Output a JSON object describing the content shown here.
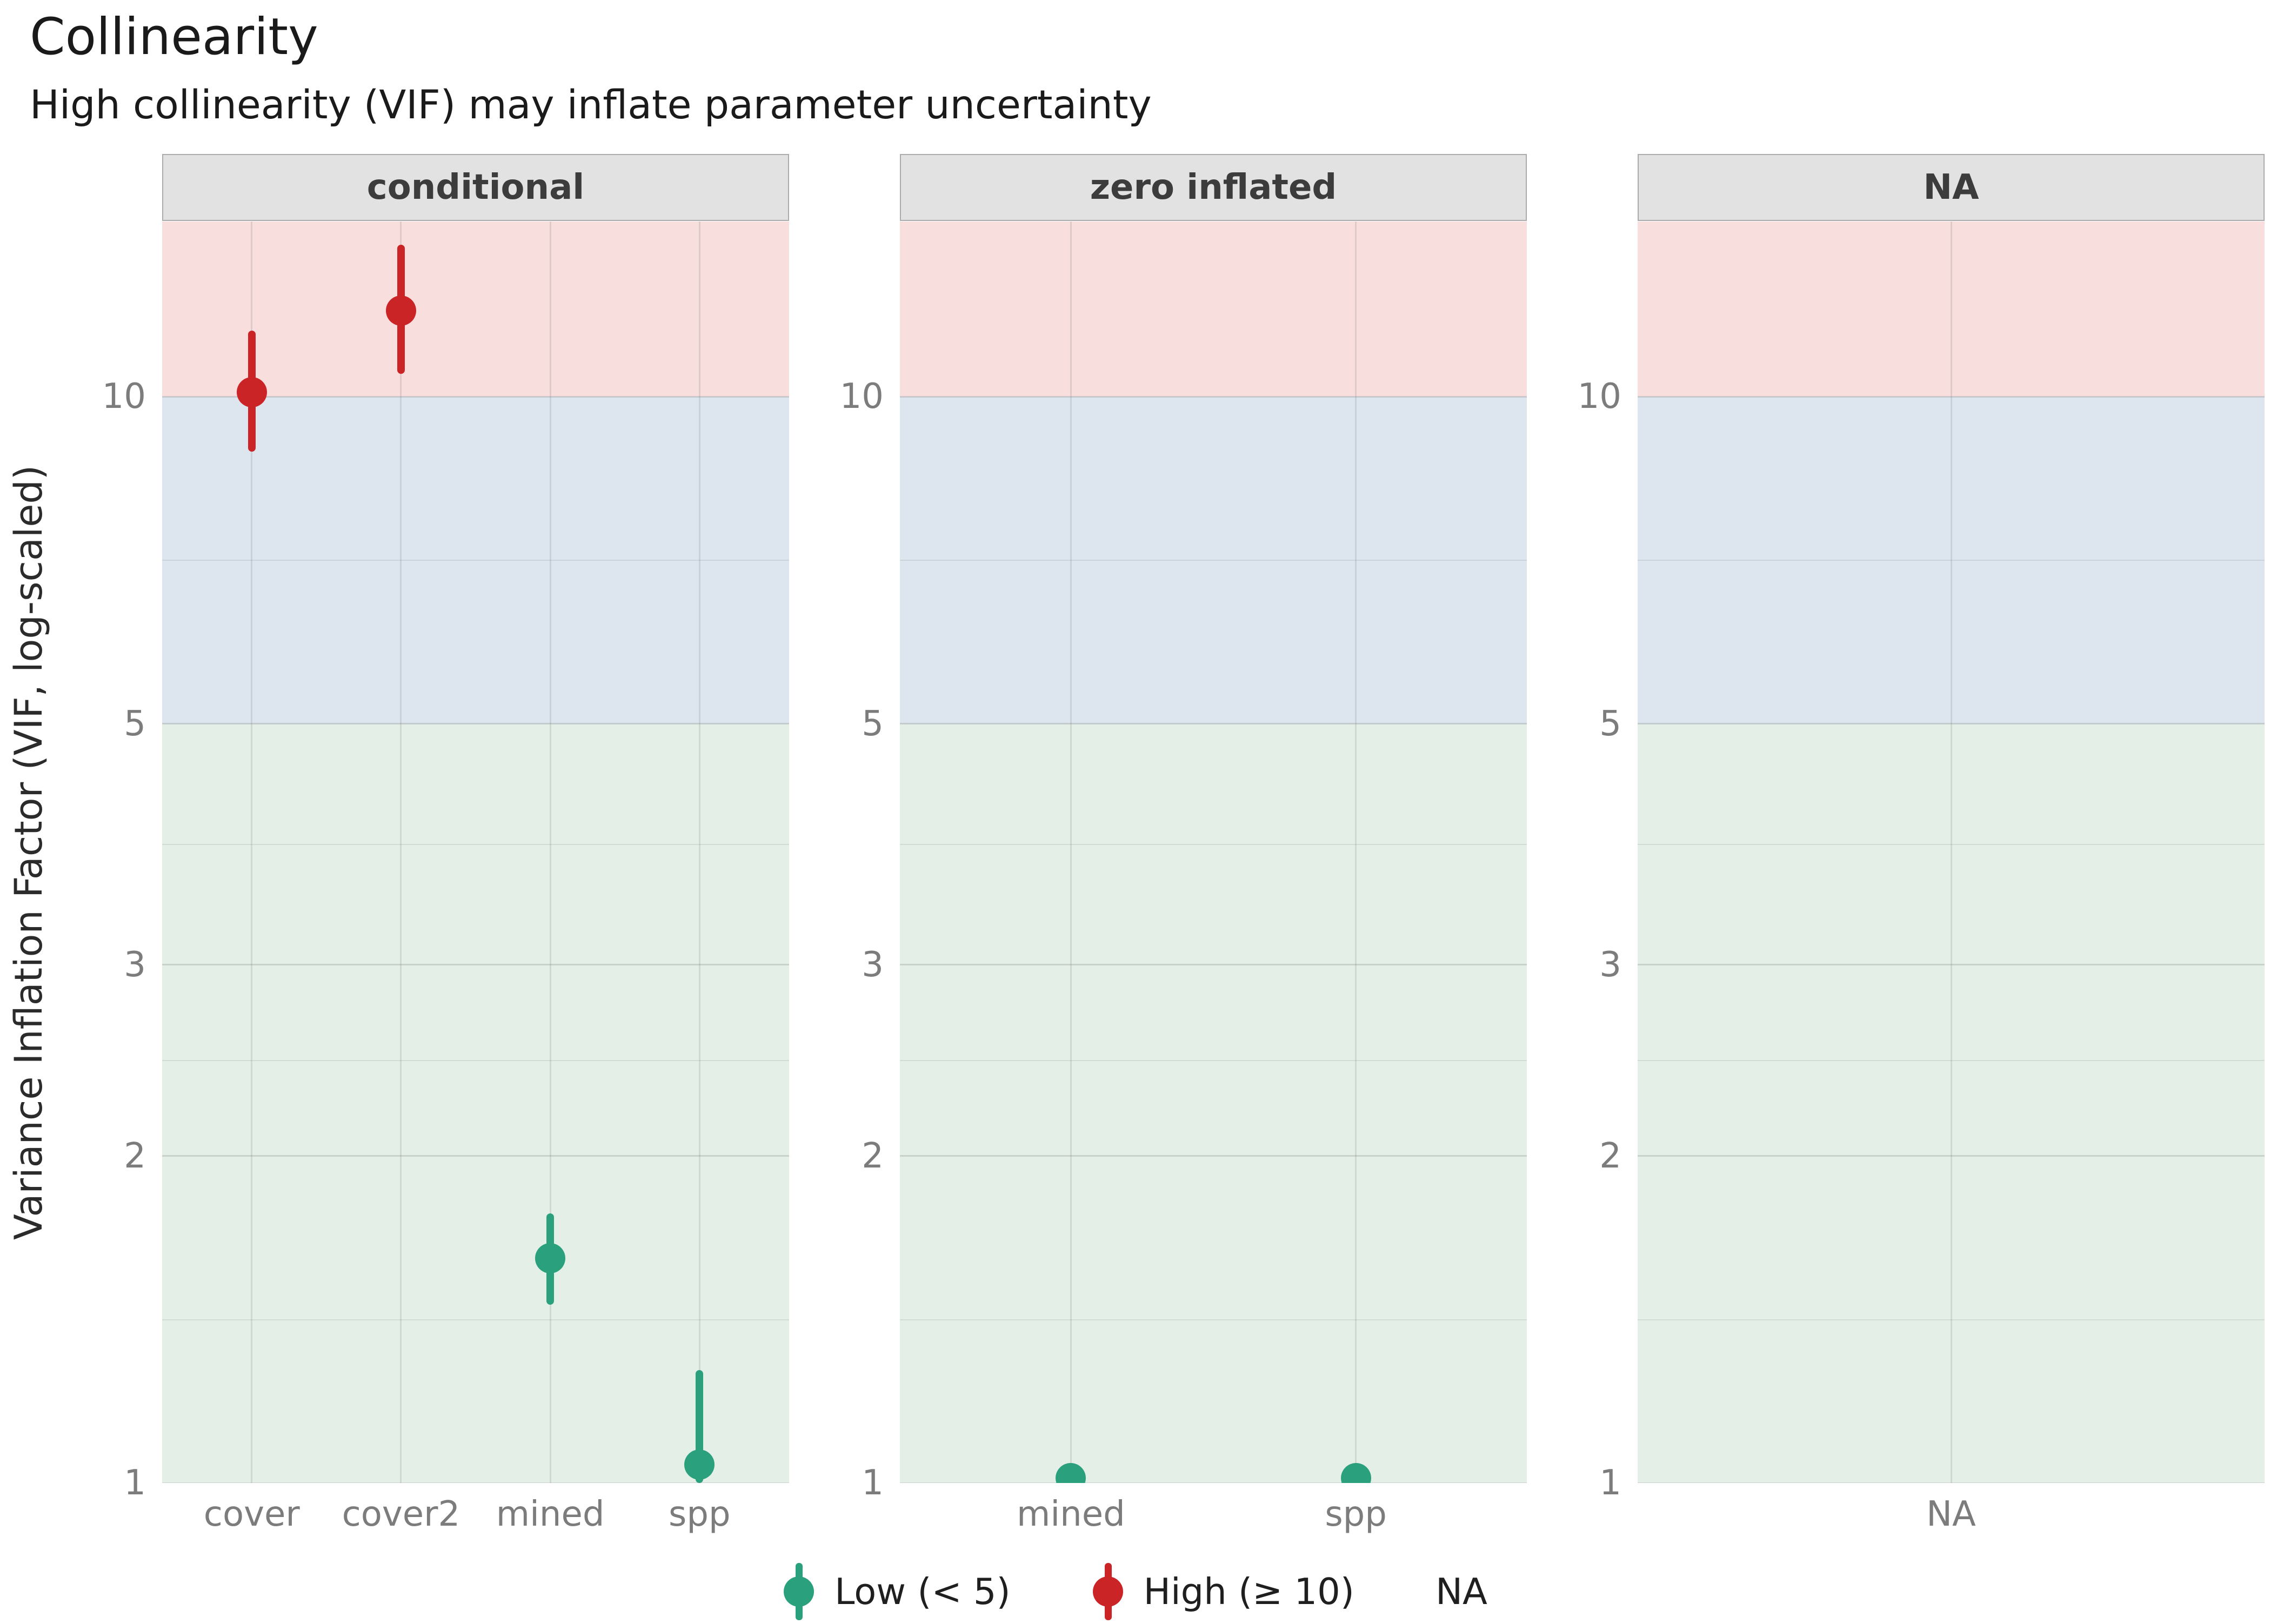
{
  "chart_data": {
    "type": "pointrange",
    "title": "Collinearity",
    "subtitle": "High collinearity (VIF) may inflate parameter uncertainty",
    "ylabel": "Variance Inflation Factor (VIF, log-scaled)",
    "yscale": "log10",
    "ylim": [
      1,
      14.5
    ],
    "yticks": [
      1,
      2,
      3,
      5,
      10
    ],
    "yticks_minor": [
      1.414,
      2.449,
      3.873,
      7.071
    ],
    "grid": true,
    "bands": [
      {
        "name": "low",
        "from": 1,
        "to": 5,
        "color": "#e4f0e7"
      },
      {
        "name": "moderate",
        "from": 5,
        "to": 10,
        "color": "#dde6ef"
      },
      {
        "name": "high",
        "from": 10,
        "to": 14.5,
        "color": "#f9dede"
      }
    ],
    "facets": [
      {
        "label": "conditional",
        "categories": [
          "cover",
          "cover2",
          "mined",
          "spp"
        ],
        "points": [
          {
            "term": "cover",
            "vif": 10.1,
            "ci_low": 8.9,
            "ci_high": 11.5,
            "level": "high"
          },
          {
            "term": "cover2",
            "vif": 12.0,
            "ci_low": 10.5,
            "ci_high": 13.8,
            "level": "high"
          },
          {
            "term": "mined",
            "vif": 1.61,
            "ci_low": 1.46,
            "ci_high": 1.77,
            "level": "low"
          },
          {
            "term": "spp",
            "vif": 1.04,
            "ci_low": 1.0,
            "ci_high": 1.27,
            "level": "low"
          }
        ]
      },
      {
        "label": "zero inflated",
        "categories": [
          "mined",
          "spp"
        ],
        "points": [
          {
            "term": "mined",
            "vif": 1.01,
            "ci_low": 1.0,
            "ci_high": 1.02,
            "level": "low"
          },
          {
            "term": "spp",
            "vif": 1.01,
            "ci_low": 1.0,
            "ci_high": 1.02,
            "level": "low"
          }
        ]
      },
      {
        "label": "NA",
        "categories": [
          "NA"
        ],
        "points": []
      }
    ],
    "legend": [
      {
        "label": "Low (< 5)",
        "color": "#2AA17C",
        "glyph": "pointrange"
      },
      {
        "label": "High (≥ 10)",
        "color": "#CB2427",
        "glyph": "pointrange"
      },
      {
        "label": "NA",
        "color": "",
        "glyph": "none"
      }
    ],
    "colors": {
      "low": "#2AA17C",
      "high": "#CB2427"
    }
  }
}
